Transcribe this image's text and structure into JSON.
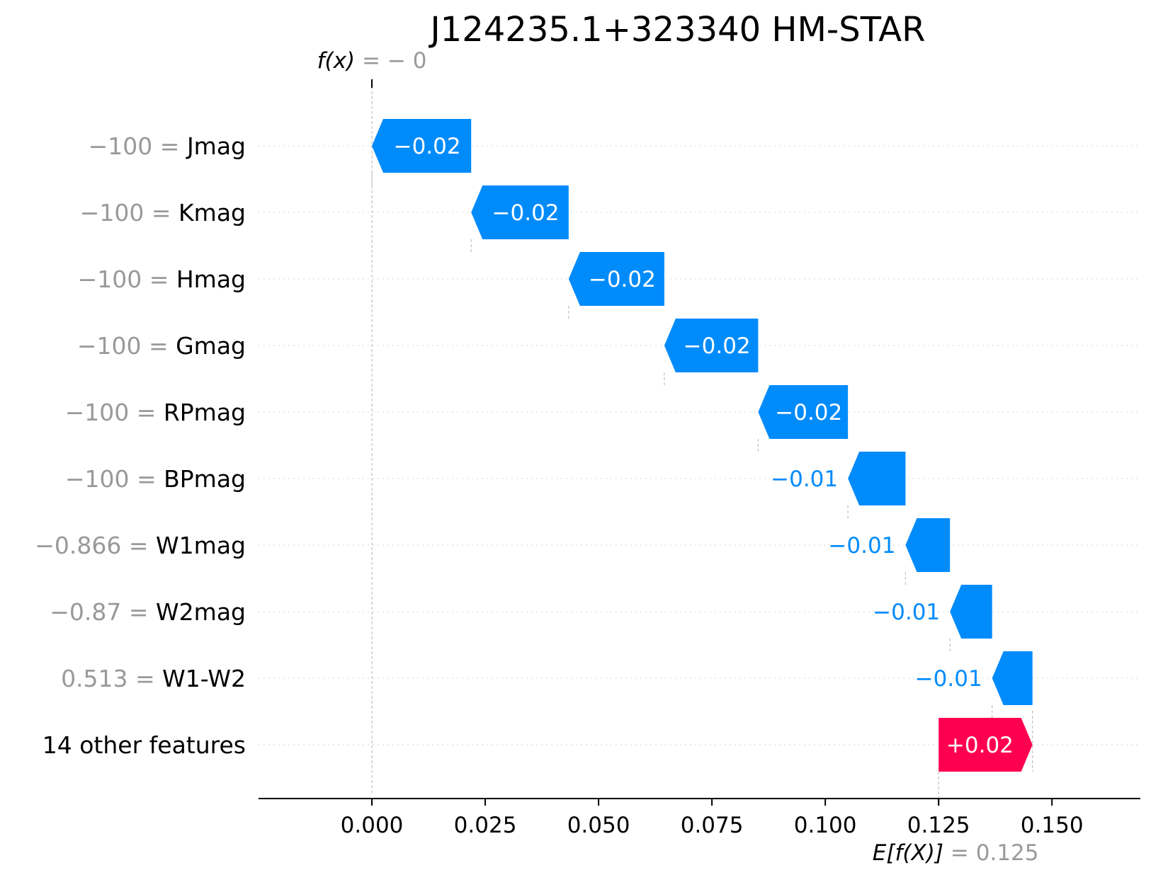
{
  "chart_data": {
    "type": "waterfall",
    "title": "J124235.1+323340 HM-STAR",
    "fx_label": "f(x)",
    "fx_value_text": "= − 0",
    "fx_value": 0.0,
    "base_label": "E[f(X)]",
    "base_value_text": "= 0.125",
    "base_value": 0.125,
    "xlim": [
      -0.025,
      0.1695
    ],
    "xticks": [
      0.0,
      0.025,
      0.05,
      0.075,
      0.1,
      0.125,
      0.15
    ],
    "xtick_labels": [
      "0.000",
      "0.025",
      "0.050",
      "0.075",
      "0.100",
      "0.125",
      "0.150"
    ],
    "colors": {
      "negative": "#008bfb",
      "positive": "#ff0051"
    },
    "features": [
      {
        "value_text": "−100 =",
        "name": "Jmag",
        "label": "−0.02",
        "start": 0.0219,
        "end": 0.0,
        "label_inside": true
      },
      {
        "value_text": "−100 =",
        "name": "Kmag",
        "label": "−0.02",
        "start": 0.0434,
        "end": 0.0219,
        "label_inside": true
      },
      {
        "value_text": "−100 =",
        "name": "Hmag",
        "label": "−0.02",
        "start": 0.0645,
        "end": 0.0434,
        "label_inside": true
      },
      {
        "value_text": "−100 =",
        "name": "Gmag",
        "label": "−0.02",
        "start": 0.0852,
        "end": 0.0645,
        "label_inside": true
      },
      {
        "value_text": "−100 =",
        "name": "RPmag",
        "label": "−0.02",
        "start": 0.105,
        "end": 0.0852,
        "label_inside": true
      },
      {
        "value_text": "−100 =",
        "name": "BPmag",
        "label": "−0.01",
        "start": 0.1177,
        "end": 0.105,
        "label_inside": false
      },
      {
        "value_text": "−0.866 =",
        "name": "W1mag",
        "label": "−0.01",
        "start": 0.1275,
        "end": 0.1177,
        "label_inside": false
      },
      {
        "value_text": "−0.87 =",
        "name": "W2mag",
        "label": "−0.01",
        "start": 0.1368,
        "end": 0.1275,
        "label_inside": false
      },
      {
        "value_text": "0.513 =",
        "name": "W1-W2",
        "label": "−0.01",
        "start": 0.1457,
        "end": 0.1368,
        "label_inside": false
      },
      {
        "value_text": "",
        "name": "14 other features",
        "label": "+0.02",
        "start": 0.125,
        "end": 0.1457,
        "label_inside": true
      }
    ]
  }
}
